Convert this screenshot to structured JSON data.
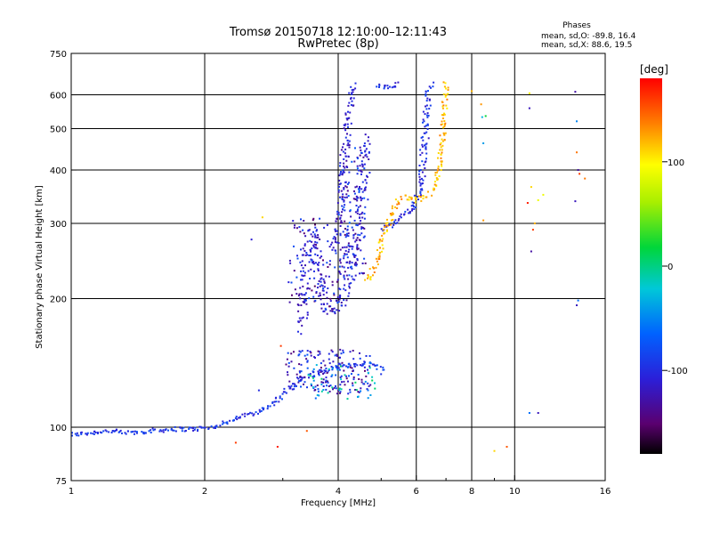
{
  "header": {
    "title_line1": "Tromsø 20150718 12:10:00–12:11:43",
    "title_line2": "RwPretec (8p)",
    "phase_title": "Phases",
    "phase_o": "mean, sd,O: -89.8, 16.4",
    "phase_x": "mean, sd,X:  88.6, 19.5"
  },
  "colorbar": {
    "title": "[deg]",
    "range": [
      -180,
      180
    ],
    "ticks": [
      {
        "value": 100,
        "label": "100"
      },
      {
        "value": 0,
        "label": "0"
      },
      {
        "value": -100,
        "label": "-100"
      }
    ]
  },
  "chart_data": {
    "type": "scatter",
    "xlabel": "Frequency [MHz]",
    "ylabel": "Stationary phase Virtual Height [km]",
    "xscale": "log",
    "yscale": "log",
    "xlim": [
      1,
      16
    ],
    "ylim": [
      75,
      750
    ],
    "x_ticks": [
      {
        "value": 1,
        "label": "1"
      },
      {
        "value": 2,
        "label": "2"
      },
      {
        "value": 4,
        "label": "4"
      },
      {
        "value": 6,
        "label": "6"
      },
      {
        "value": 8,
        "label": "8"
      },
      {
        "value": 10,
        "label": "10"
      },
      {
        "value": 16,
        "label": "16"
      }
    ],
    "y_ticks": [
      {
        "value": 75,
        "label": "75"
      },
      {
        "value": 100,
        "label": "100"
      },
      {
        "value": 200,
        "label": "200"
      },
      {
        "value": 300,
        "label": "300"
      },
      {
        "value": 400,
        "label": "400"
      },
      {
        "value": 500,
        "label": "500"
      },
      {
        "value": 600,
        "label": "600"
      },
      {
        "value": 750,
        "label": "750"
      }
    ],
    "grid_x": [
      2,
      4,
      6,
      8,
      10
    ],
    "grid_y": [
      100,
      200,
      300,
      400,
      500,
      600
    ],
    "color_encoding": "phase_deg",
    "traces": [
      {
        "type": "curve",
        "phase": -95,
        "jx": 0.015,
        "jy": 0.012,
        "points": [
          [
            1.0,
            96
          ],
          [
            1.1,
            97
          ],
          [
            1.2,
            98
          ],
          [
            1.35,
            97
          ],
          [
            1.5,
            98
          ],
          [
            1.7,
            99
          ],
          [
            1.9,
            99
          ],
          [
            2.1,
            100
          ],
          [
            2.3,
            104
          ],
          [
            2.5,
            107
          ],
          [
            2.7,
            110
          ],
          [
            2.85,
            113
          ],
          [
            3.0,
            119
          ],
          [
            3.15,
            125
          ],
          [
            3.3,
            130
          ],
          [
            3.5,
            133
          ],
          [
            3.7,
            135
          ],
          [
            3.9,
            137
          ],
          [
            4.1,
            139
          ],
          [
            4.3,
            140
          ],
          [
            4.5,
            141
          ],
          [
            4.7,
            141
          ],
          [
            4.9,
            139
          ],
          [
            5.1,
            134
          ]
        ]
      },
      {
        "type": "curve",
        "phase": -110,
        "jx": 0.03,
        "jy": 0.03,
        "points": [
          [
            3.3,
            170
          ],
          [
            3.35,
            200
          ],
          [
            3.4,
            240
          ],
          [
            3.45,
            270
          ],
          [
            3.5,
            290
          ],
          [
            3.55,
            265
          ],
          [
            3.6,
            230
          ],
          [
            3.7,
            200
          ],
          [
            3.8,
            186
          ],
          [
            3.9,
            185
          ],
          [
            4.0,
            192
          ],
          [
            4.1,
            200
          ],
          [
            4.2,
            215
          ],
          [
            4.3,
            240
          ],
          [
            4.4,
            275
          ],
          [
            4.5,
            320
          ],
          [
            4.55,
            370
          ],
          [
            4.6,
            420
          ],
          [
            4.65,
            480
          ]
        ]
      },
      {
        "type": "curve",
        "phase": -110,
        "jx": 0.02,
        "jy": 0.02,
        "points": [
          [
            3.9,
            260
          ],
          [
            4.0,
            290
          ],
          [
            4.05,
            330
          ],
          [
            4.1,
            380
          ],
          [
            4.15,
            440
          ],
          [
            4.2,
            500
          ],
          [
            4.25,
            560
          ],
          [
            4.3,
            610
          ],
          [
            4.35,
            640
          ]
        ]
      },
      {
        "type": "curve",
        "phase": -100,
        "jx": 0.02,
        "jy": 0.015,
        "points": [
          [
            5.0,
            290
          ],
          [
            5.15,
            295
          ],
          [
            5.3,
            300
          ],
          [
            5.5,
            310
          ],
          [
            5.7,
            320
          ],
          [
            5.9,
            320
          ],
          [
            6.0,
            335
          ],
          [
            6.1,
            360
          ],
          [
            6.2,
            400
          ],
          [
            6.25,
            450
          ],
          [
            6.3,
            500
          ],
          [
            6.35,
            550
          ],
          [
            6.4,
            600
          ],
          [
            6.45,
            640
          ]
        ]
      },
      {
        "type": "curve",
        "phase": -100,
        "jx": 0.01,
        "jy": 0.01,
        "points": [
          [
            4.9,
            632
          ],
          [
            5.0,
            628
          ],
          [
            5.1,
            625
          ],
          [
            5.2,
            625
          ],
          [
            5.3,
            628
          ],
          [
            5.4,
            632
          ],
          [
            5.5,
            640
          ]
        ]
      },
      {
        "type": "curve",
        "phase": 120,
        "jx": 0.015,
        "jy": 0.015,
        "points": [
          [
            4.6,
            220
          ],
          [
            4.75,
            230
          ],
          [
            4.9,
            245
          ],
          [
            5.0,
            265
          ],
          [
            5.1,
            285
          ],
          [
            5.2,
            305
          ],
          [
            5.4,
            335
          ],
          [
            5.6,
            345
          ],
          [
            5.8,
            340
          ],
          [
            6.0,
            340
          ],
          [
            6.25,
            345
          ],
          [
            6.5,
            355
          ],
          [
            6.7,
            385
          ],
          [
            6.8,
            430
          ],
          [
            6.9,
            490
          ],
          [
            6.95,
            560
          ],
          [
            7.0,
            640
          ]
        ]
      },
      {
        "type": "cloud",
        "phase": -110,
        "center": [
          3.8,
          135
        ],
        "spread": [
          0.22,
          0.12
        ],
        "count": 170
      },
      {
        "type": "cloud",
        "phase": -30,
        "center": [
          4.1,
          128
        ],
        "spread": [
          0.18,
          0.1
        ],
        "count": 45
      },
      {
        "type": "cloud",
        "phase": -115,
        "center": [
          3.6,
          240
        ],
        "spread": [
          0.16,
          0.25
        ],
        "count": 110
      },
      {
        "type": "cloud",
        "phase": -105,
        "center": [
          4.3,
          320
        ],
        "spread": [
          0.07,
          0.35
        ],
        "count": 120
      }
    ],
    "outliers": [
      {
        "x": 2.65,
        "y": 122,
        "phase": -100
      },
      {
        "x": 2.35,
        "y": 92,
        "phase": 160
      },
      {
        "x": 2.92,
        "y": 90,
        "phase": 170
      },
      {
        "x": 2.97,
        "y": 155,
        "phase": 160
      },
      {
        "x": 2.55,
        "y": 275,
        "phase": -110
      },
      {
        "x": 2.7,
        "y": 310,
        "phase": 110
      },
      {
        "x": 3.4,
        "y": 98,
        "phase": 150
      },
      {
        "x": 8.0,
        "y": 612,
        "phase": 120
      },
      {
        "x": 8.4,
        "y": 570,
        "phase": 130
      },
      {
        "x": 8.6,
        "y": 535,
        "phase": 20
      },
      {
        "x": 8.45,
        "y": 532,
        "phase": -30
      },
      {
        "x": 8.5,
        "y": 462,
        "phase": -40
      },
      {
        "x": 9.0,
        "y": 88,
        "phase": 110
      },
      {
        "x": 9.6,
        "y": 90,
        "phase": 150
      },
      {
        "x": 8.5,
        "y": 305,
        "phase": 130
      },
      {
        "x": 10.8,
        "y": 605,
        "phase": 100
      },
      {
        "x": 10.8,
        "y": 558,
        "phase": -120
      },
      {
        "x": 10.9,
        "y": 365,
        "phase": 110
      },
      {
        "x": 10.7,
        "y": 335,
        "phase": 170
      },
      {
        "x": 11.3,
        "y": 340,
        "phase": 90
      },
      {
        "x": 11.1,
        "y": 300,
        "phase": 120
      },
      {
        "x": 10.9,
        "y": 258,
        "phase": -130
      },
      {
        "x": 11.0,
        "y": 290,
        "phase": 160
      },
      {
        "x": 11.3,
        "y": 108,
        "phase": -120
      },
      {
        "x": 10.8,
        "y": 108,
        "phase": -60
      },
      {
        "x": 11.6,
        "y": 350,
        "phase": 90
      },
      {
        "x": 13.7,
        "y": 610,
        "phase": -130
      },
      {
        "x": 13.8,
        "y": 520,
        "phase": -50
      },
      {
        "x": 13.8,
        "y": 440,
        "phase": 140
      },
      {
        "x": 13.9,
        "y": 400,
        "phase": -130
      },
      {
        "x": 14.0,
        "y": 392,
        "phase": 160
      },
      {
        "x": 14.4,
        "y": 382,
        "phase": 140
      },
      {
        "x": 13.7,
        "y": 338,
        "phase": -120
      },
      {
        "x": 13.8,
        "y": 193,
        "phase": -120
      },
      {
        "x": 13.9,
        "y": 198,
        "phase": -60
      }
    ]
  }
}
